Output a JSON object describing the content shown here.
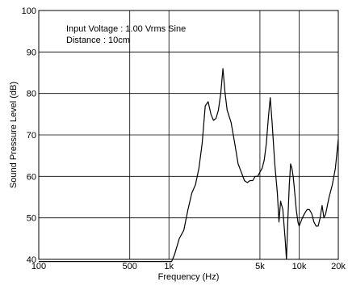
{
  "chart_data": {
    "type": "line",
    "xlabel": "Frequency (Hz)",
    "ylabel": "Sound Pressure Level (dB)",
    "x_scale": "log",
    "xlim": [
      100,
      20000
    ],
    "ylim": [
      40,
      100
    ],
    "x_ticks": [
      {
        "value": 100,
        "label": "100"
      },
      {
        "value": 500,
        "label": "500"
      },
      {
        "value": 1000,
        "label": "1k"
      },
      {
        "value": 5000,
        "label": "5k"
      },
      {
        "value": 10000,
        "label": "10k"
      },
      {
        "value": 20000,
        "label": "20k"
      }
    ],
    "y_ticks": [
      40,
      50,
      60,
      70,
      80,
      90,
      100
    ],
    "grid": true,
    "annotations": [
      "Input Voltage : 1.00 Vrms Sine",
      "Distance : 10cm"
    ],
    "series": [
      {
        "x": [
          100,
          800,
          1050,
          1100,
          1150,
          1200,
          1300,
          1400,
          1500,
          1600,
          1700,
          1800,
          1900,
          2000,
          2100,
          2200,
          2300,
          2400,
          2500,
          2600,
          2700,
          2800,
          3000,
          3200,
          3400,
          3600,
          3800,
          4000,
          4200,
          4400,
          4600,
          4800,
          5000,
          5200,
          5400,
          5600,
          5800,
          6000,
          6200,
          6500,
          6800,
          7000,
          7200,
          7500,
          7800,
          8000,
          8200,
          8400,
          8600,
          8800,
          9000,
          9200,
          9500,
          9800,
          10000,
          10300,
          10600,
          11000,
          11500,
          12000,
          12500,
          13000,
          13500,
          14000,
          14500,
          15000,
          15500,
          16000,
          17000,
          18000,
          19000,
          20000
        ],
        "y": [
          39.5,
          39.5,
          39.5,
          41,
          43,
          45,
          47,
          52,
          56,
          58,
          62,
          68,
          77,
          78,
          75,
          73.5,
          74,
          76,
          80,
          86,
          80,
          76,
          73,
          68,
          63,
          61,
          59,
          58.5,
          59,
          59,
          60,
          60,
          61,
          62,
          64,
          68,
          74,
          79,
          73,
          63,
          56,
          49,
          54,
          52,
          45,
          40,
          50,
          58,
          63,
          62,
          60,
          57,
          52,
          49,
          48,
          49,
          50,
          51,
          52,
          52,
          51,
          49,
          48,
          48,
          50,
          53,
          50,
          51,
          55,
          58,
          62,
          69
        ]
      }
    ]
  }
}
